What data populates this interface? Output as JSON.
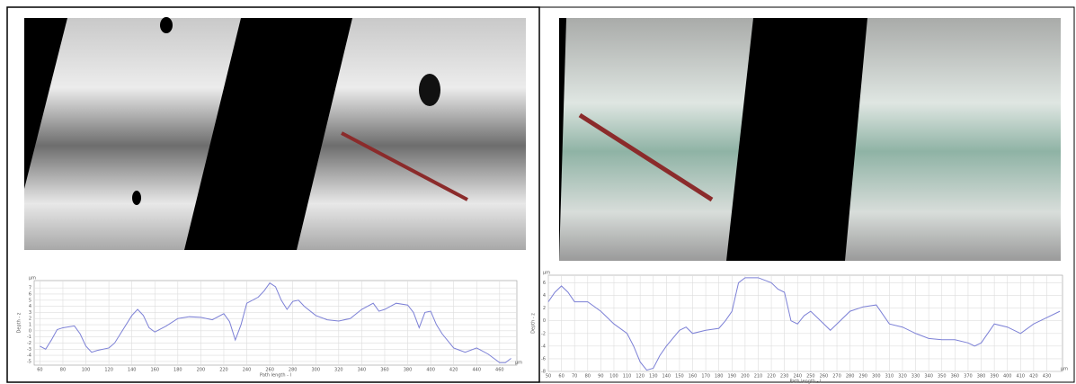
{
  "chart_data": [
    {
      "type": "line",
      "y_unit": "µm",
      "ylabel": "Depth - z",
      "xlabel": "Path length - l",
      "x_unit": "µm",
      "grid": true,
      "xlim": [
        55,
        475
      ],
      "ylim": [
        -5.6,
        8.2
      ],
      "xticks": [
        60,
        80,
        100,
        120,
        140,
        160,
        180,
        200,
        220,
        240,
        260,
        280,
        300,
        320,
        340,
        360,
        380,
        400,
        420,
        440,
        460
      ],
      "yticks": [
        -5,
        -4,
        -3,
        -2,
        -1,
        0,
        1,
        2,
        3,
        4,
        5,
        6,
        7
      ],
      "x": [
        60,
        65,
        70,
        75,
        80,
        90,
        95,
        100,
        105,
        110,
        120,
        125,
        130,
        140,
        145,
        150,
        155,
        160,
        170,
        180,
        190,
        200,
        210,
        220,
        225,
        230,
        235,
        240,
        250,
        255,
        260,
        265,
        270,
        275,
        280,
        285,
        290,
        300,
        310,
        320,
        330,
        340,
        350,
        355,
        360,
        370,
        380,
        385,
        390,
        395,
        400,
        405,
        410,
        420,
        430,
        440,
        450,
        460,
        465,
        470
      ],
      "series": [
        {
          "color": "#7c80d6",
          "values": [
            -2.5,
            -3,
            -1.5,
            0.2,
            0.5,
            0.8,
            -0.5,
            -2.5,
            -3.5,
            -3.2,
            -2.8,
            -2,
            -0.5,
            2.5,
            3.5,
            2.5,
            0.5,
            -0.2,
            0.8,
            2,
            2.3,
            2.2,
            1.8,
            2.8,
            1.5,
            -1.5,
            1,
            4.5,
            5.5,
            6.5,
            7.8,
            7.2,
            5,
            3.5,
            4.8,
            5,
            4,
            2.5,
            1.8,
            1.6,
            2,
            3.5,
            4.5,
            3.2,
            3.5,
            4.5,
            4.2,
            3,
            0.5,
            3,
            3.2,
            1,
            -0.5,
            -2.8,
            -3.5,
            -2.8,
            -3.8,
            -5.2,
            -5.2,
            -4.5
          ]
        }
      ]
    },
    {
      "type": "line",
      "y_unit": "µm",
      "ylabel": "Depth - z",
      "xlabel": "Path length - l",
      "x_unit": "µm",
      "grid": true,
      "xlim": [
        50,
        442
      ],
      "ylim": [
        -8,
        7.2
      ],
      "xticks": [
        50,
        60,
        70,
        80,
        90,
        100,
        110,
        120,
        130,
        140,
        150,
        160,
        170,
        180,
        190,
        200,
        210,
        220,
        230,
        240,
        250,
        260,
        270,
        280,
        290,
        300,
        310,
        320,
        330,
        340,
        350,
        360,
        370,
        380,
        390,
        400,
        410,
        420,
        430
      ],
      "yticks": [
        -8,
        -6,
        -4,
        -2,
        0,
        2,
        4,
        6
      ],
      "x": [
        50,
        55,
        60,
        65,
        70,
        80,
        90,
        100,
        110,
        115,
        120,
        125,
        130,
        135,
        140,
        150,
        155,
        160,
        170,
        180,
        185,
        190,
        195,
        200,
        210,
        220,
        225,
        230,
        235,
        240,
        245,
        250,
        255,
        265,
        270,
        280,
        290,
        300,
        310,
        320,
        330,
        340,
        350,
        360,
        370,
        375,
        380,
        390,
        400,
        410,
        420,
        430,
        440
      ],
      "series": [
        {
          "color": "#7c80d6",
          "values": [
            3,
            4.5,
            5.5,
            4.5,
            3,
            3,
            1.5,
            -0.5,
            -2,
            -4,
            -6.5,
            -7.8,
            -7.5,
            -5.5,
            -4,
            -1.5,
            -1,
            -2,
            -1.5,
            -1.2,
            0,
            1.5,
            6,
            6.8,
            6.8,
            6,
            5,
            4.5,
            0,
            -0.5,
            0.8,
            1.5,
            0.5,
            -1.5,
            -0.5,
            1.5,
            2.2,
            2.5,
            -0.5,
            -1,
            -2,
            -2.8,
            -3,
            -3,
            -3.5,
            -4,
            -3.5,
            -0.5,
            -1,
            -2,
            -0.5,
            0.5,
            1.5
          ]
        }
      ]
    }
  ]
}
